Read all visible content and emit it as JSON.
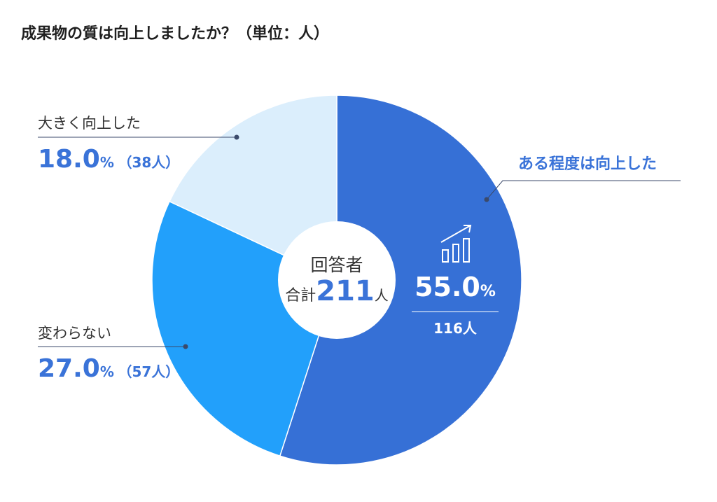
{
  "title": "成果物の質は向上しましたか？（単位：人）",
  "center": {
    "line1": "回答者",
    "line2_prefix": "合計",
    "total": "211",
    "unit": "人"
  },
  "chart_data": {
    "type": "pie",
    "title": "成果物の質は向上しましたか？（単位：人）",
    "unit": "人",
    "total": 211,
    "slices": [
      {
        "label": "ある程度は向上した",
        "percent_text": "55.0",
        "count_text": "116人",
        "value": 116,
        "percent": 55.0,
        "color": "#3670d6"
      },
      {
        "label": "変わらない",
        "percent_text": "27.0",
        "count_text": "（57人）",
        "value": 57,
        "percent": 27.0,
        "color": "#22a0fb"
      },
      {
        "label": "大きく向上した",
        "percent_text": "18.0",
        "count_text": "（38人）",
        "value": 38,
        "percent": 18.0,
        "color": "#dbeefc"
      }
    ],
    "percent_symbol": "%"
  },
  "colors": {
    "accent": "#3a73d8",
    "leader": "#3b4a6b",
    "trend_icon": "#ffffff"
  },
  "icons": {
    "trend": "bar-chart-trend-icon"
  }
}
